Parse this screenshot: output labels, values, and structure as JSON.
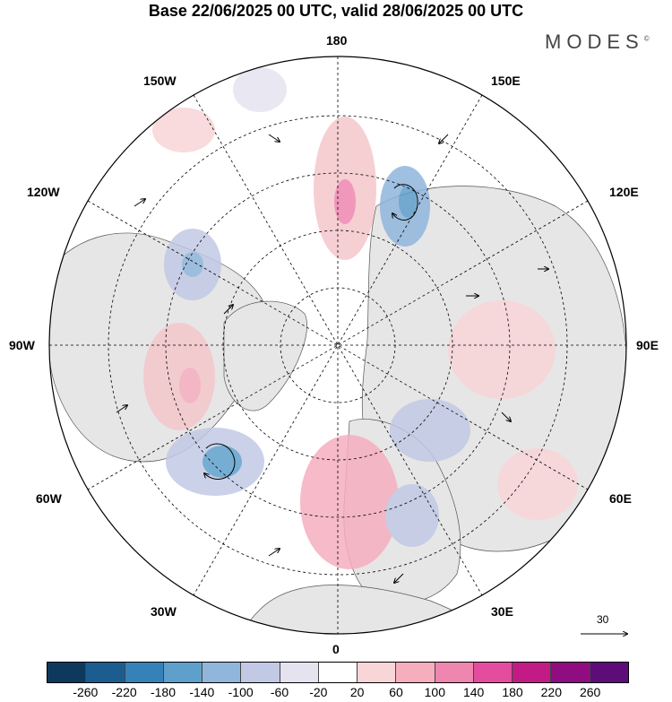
{
  "title": "Base 22/06/2025 00 UTC, valid 28/06/2025 00 UTC",
  "brand": "MODES",
  "brand_mark": "©",
  "longitude_labels": {
    "deg180": "180",
    "w150": "150W",
    "e150": "150E",
    "w120": "120W",
    "e120": "120E",
    "w90": "90W",
    "e90": "90E",
    "w60": "60W",
    "e60": "60E",
    "w30": "30W",
    "e30": "30E",
    "deg0": "0"
  },
  "wind_reference": {
    "value": "30"
  },
  "colorbar": {
    "ticks": [
      "-260",
      "-220",
      "-180",
      "-140",
      "-100",
      "-60",
      "-20",
      "20",
      "60",
      "100",
      "140",
      "180",
      "220",
      "260"
    ],
    "colors": [
      "#0d3a5c",
      "#1c5d8f",
      "#3582b9",
      "#5f9fcc",
      "#90b6dc",
      "#c1c9e4",
      "#e5e3f0",
      "#ffffff",
      "#f8d5d7",
      "#f6aebf",
      "#ef86b0",
      "#e44d9e",
      "#c21b86",
      "#8f0d80",
      "#5e0c7a"
    ]
  },
  "colors": {
    "land": "#e6e6e6",
    "ocean": "#ffffff",
    "coast": "#555555",
    "positive": "#f5c7cc",
    "negative": "#c9cce6"
  }
}
